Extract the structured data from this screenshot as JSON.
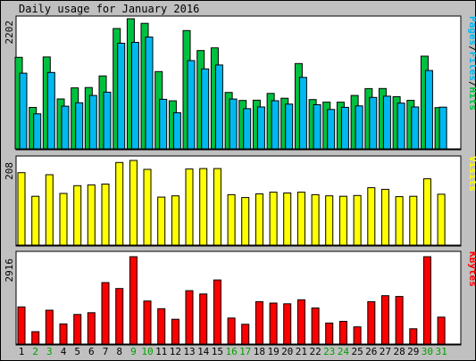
{
  "chart_data": {
    "type": "bar",
    "title": "Daily usage for January 2016",
    "categories": [
      "1",
      "2",
      "3",
      "4",
      "5",
      "6",
      "7",
      "8",
      "9",
      "10",
      "11",
      "12",
      "13",
      "14",
      "15",
      "16",
      "17",
      "18",
      "19",
      "20",
      "21",
      "22",
      "23",
      "24",
      "25",
      "26",
      "27",
      "28",
      "29",
      "30",
      "31"
    ],
    "weekend_days": [
      "2",
      "3",
      "9",
      "10",
      "16",
      "17",
      "23",
      "24",
      "30",
      "31"
    ],
    "colors": {
      "hits": "#00c040",
      "files": "#00b8f0",
      "pages": "#0080c0",
      "visits": "#ffff00",
      "kbytes": "#ff0000",
      "weekday_label": "#000000",
      "weekend_label": "#00a000"
    },
    "panels": [
      {
        "name": "hits-files",
        "ylabel_parts": [
          {
            "text": "Pages",
            "color": "#00b8f0"
          },
          {
            "text": "/",
            "color": "#000000"
          },
          {
            "text": "Files",
            "color": "#00b8f0"
          },
          {
            "text": "/",
            "color": "#000000"
          },
          {
            "text": "Hits",
            "color": "#00c040"
          }
        ],
        "max_label": "2202",
        "ylim": [
          0,
          2202
        ],
        "series": [
          {
            "name": "Hits",
            "color": "#00c040",
            "values": [
              1549,
              702,
              1555,
              845,
              1031,
              1037,
              1234,
              2036,
              2202,
              2123,
              1307,
              813,
              2002,
              1663,
              1709,
              954,
              819,
              823,
              938,
              857,
              1444,
              834,
              791,
              791,
              903,
              1020,
              1021,
              882,
              821,
              1569,
              698
            ]
          },
          {
            "name": "Files",
            "color": "#00b8f0",
            "values": [
              1280,
              592,
              1292,
              723,
              779,
              903,
              959,
              1787,
              1802,
              1892,
              838,
              611,
              1493,
              1353,
              1419,
              843,
              680,
              709,
              814,
              757,
              1210,
              746,
              666,
              703,
              727,
              870,
              892,
              774,
              709,
              1326,
              706
            ]
          }
        ]
      },
      {
        "name": "visits",
        "ylabel_parts": [
          {
            "text": "Visits",
            "color": "#ffff00"
          }
        ],
        "max_label": "208",
        "ylim": [
          0,
          208
        ],
        "series": [
          {
            "name": "Visits",
            "color": "#ffff00",
            "values": [
              178,
              120,
              173,
              127,
              146,
              148,
              150,
              203,
              208,
              186,
              118,
              121,
              187,
              188,
              188,
              124,
              117,
              126,
              130,
              128,
              130,
              124,
              121,
              120,
              122,
              141,
              137,
              119,
              120,
              163,
              125
            ]
          }
        ]
      },
      {
        "name": "kbytes",
        "ylabel_parts": [
          {
            "text": "KBytes",
            "color": "#ff0000"
          }
        ],
        "max_label": "2916",
        "ylim": [
          0,
          2916
        ],
        "series": [
          {
            "name": "KBytes",
            "color": "#ff0000",
            "values": [
              1240,
              414,
              1132,
              671,
              988,
              1048,
              2054,
              1855,
              2916,
              1438,
              1182,
              827,
              1782,
              1672,
              2140,
              869,
              662,
              1417,
              1369,
              1346,
              1478,
              1204,
              701,
              758,
              574,
              1412,
              1616,
              1589,
              512,
              2916,
              900
            ]
          }
        ]
      }
    ]
  }
}
